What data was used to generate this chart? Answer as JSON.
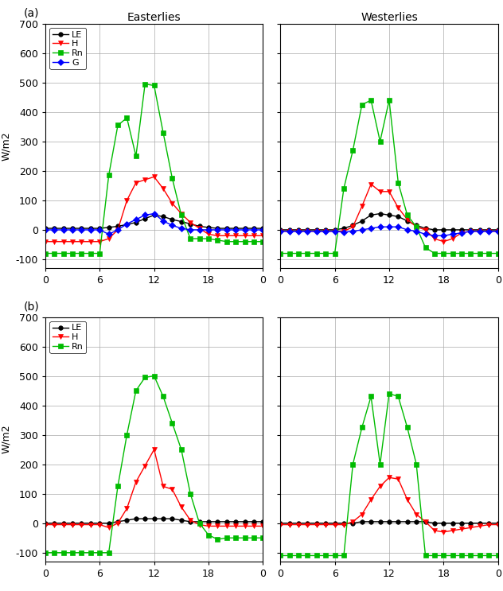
{
  "title_a": "(a)",
  "title_b": "(b)",
  "col_titles": [
    "Easterlies",
    "Westerlies"
  ],
  "ylabel": "W/m2",
  "ylim": [
    -130,
    700
  ],
  "yticks": [
    -100,
    0,
    100,
    200,
    300,
    400,
    500,
    600,
    700
  ],
  "xticks": [
    0,
    6,
    12,
    18,
    24
  ],
  "xticklabels": [
    "0",
    "6",
    "12",
    "18",
    "0"
  ],
  "xlim": [
    0,
    24
  ],
  "colors": {
    "LE": "#000000",
    "H": "#ff0000",
    "Rn": "#00bb00",
    "G": "#0000ff"
  },
  "markers": {
    "LE": "o",
    "H": "v",
    "Rn": "s",
    "G": "D"
  },
  "x": [
    0,
    1,
    2,
    3,
    4,
    5,
    6,
    7,
    8,
    9,
    10,
    11,
    12,
    13,
    14,
    15,
    16,
    17,
    18,
    19,
    20,
    21,
    22,
    23,
    24
  ],
  "a_east_LE": [
    5,
    5,
    5,
    5,
    5,
    5,
    5,
    8,
    12,
    18,
    25,
    38,
    50,
    45,
    35,
    28,
    20,
    12,
    8,
    5,
    5,
    5,
    5,
    5,
    5
  ],
  "a_east_H": [
    -40,
    -40,
    -40,
    -40,
    -40,
    -40,
    -40,
    -30,
    0,
    100,
    160,
    170,
    180,
    140,
    90,
    55,
    25,
    5,
    -15,
    -20,
    -20,
    -20,
    -20,
    -20,
    -20
  ],
  "a_east_Rn": [
    -80,
    -80,
    -80,
    -80,
    -80,
    -80,
    -80,
    185,
    355,
    380,
    250,
    495,
    490,
    330,
    175,
    50,
    -30,
    -30,
    -30,
    -35,
    -40,
    -40,
    -40,
    -40,
    -40
  ],
  "a_east_G": [
    0,
    0,
    0,
    0,
    0,
    0,
    0,
    -15,
    0,
    20,
    35,
    50,
    55,
    30,
    15,
    5,
    0,
    0,
    0,
    0,
    0,
    0,
    0,
    0,
    0
  ],
  "a_west_LE": [
    0,
    0,
    0,
    0,
    0,
    0,
    0,
    5,
    15,
    30,
    50,
    55,
    50,
    45,
    30,
    15,
    5,
    0,
    0,
    0,
    0,
    0,
    0,
    0,
    0
  ],
  "a_west_H": [
    -5,
    -5,
    -5,
    -5,
    -5,
    -5,
    -5,
    -5,
    10,
    80,
    155,
    130,
    130,
    75,
    35,
    10,
    0,
    -30,
    -40,
    -30,
    -10,
    -5,
    -5,
    -5,
    -5
  ],
  "a_west_Rn": [
    -80,
    -80,
    -80,
    -80,
    -80,
    -80,
    -80,
    140,
    270,
    425,
    440,
    300,
    440,
    160,
    50,
    10,
    -60,
    -80,
    -80,
    -80,
    -80,
    -80,
    -80,
    -80,
    -80
  ],
  "a_west_G": [
    -5,
    -5,
    -5,
    -5,
    -5,
    -5,
    -5,
    -8,
    -5,
    0,
    5,
    10,
    10,
    10,
    0,
    -5,
    -15,
    -20,
    -20,
    -15,
    -10,
    -5,
    -5,
    -5,
    -5
  ],
  "b_east_LE": [
    0,
    0,
    0,
    0,
    0,
    0,
    0,
    0,
    5,
    10,
    15,
    15,
    15,
    15,
    15,
    10,
    5,
    5,
    5,
    5,
    5,
    5,
    5,
    5,
    5
  ],
  "b_east_H": [
    -5,
    -5,
    -5,
    -5,
    -5,
    -5,
    -5,
    -15,
    0,
    50,
    140,
    195,
    250,
    125,
    115,
    55,
    10,
    -5,
    -10,
    -10,
    -10,
    -10,
    -10,
    -10,
    -10
  ],
  "b_east_Rn": [
    -100,
    -100,
    -100,
    -100,
    -100,
    -100,
    -100,
    -100,
    125,
    300,
    450,
    495,
    500,
    430,
    340,
    250,
    100,
    0,
    -40,
    -55,
    -50,
    -50,
    -50,
    -50,
    -50
  ],
  "b_west_LE": [
    0,
    0,
    0,
    0,
    0,
    0,
    0,
    0,
    0,
    5,
    5,
    5,
    5,
    5,
    5,
    5,
    5,
    0,
    0,
    0,
    0,
    0,
    0,
    0,
    0
  ],
  "b_west_H": [
    -5,
    -5,
    -5,
    -5,
    -5,
    -5,
    -5,
    -5,
    5,
    30,
    80,
    125,
    155,
    150,
    80,
    30,
    5,
    -25,
    -30,
    -25,
    -20,
    -15,
    -10,
    -5,
    -5
  ],
  "b_west_Rn": [
    -110,
    -110,
    -110,
    -110,
    -110,
    -110,
    -110,
    -110,
    200,
    325,
    430,
    200,
    440,
    430,
    325,
    200,
    -110,
    -110,
    -110,
    -110,
    -110,
    -110,
    -110,
    -110,
    -110
  ],
  "background_color": "#ffffff",
  "grid_color": "#aaaaaa",
  "markersize": 4,
  "linewidth": 1.0
}
